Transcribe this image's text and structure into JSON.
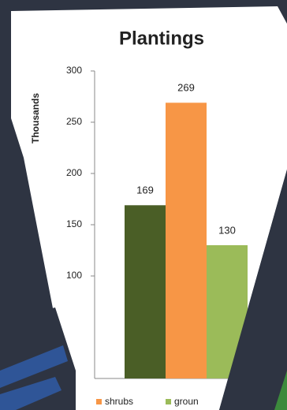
{
  "chart_data": {
    "type": "bar",
    "title": "Plantings",
    "y_label": "Thousands",
    "series": [
      {
        "name": null,
        "color": "#4a5e26",
        "values": [
          169
        ]
      },
      {
        "name": "shrubs",
        "color": "#f79646",
        "values": [
          269
        ]
      },
      {
        "name": "groun",
        "color": "#9bbb59",
        "values": [
          130
        ]
      }
    ],
    "ylim": [
      0,
      300
    ],
    "yticks": [
      100,
      150,
      200,
      250,
      300
    ],
    "grid": false
  }
}
